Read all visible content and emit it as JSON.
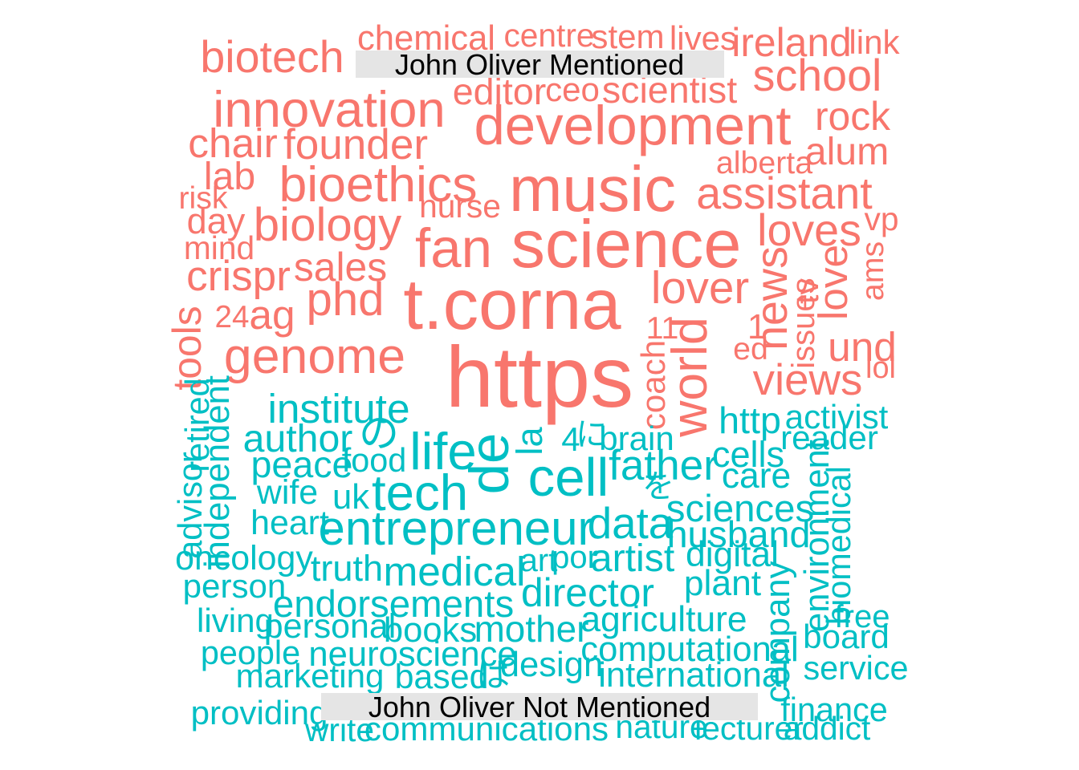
{
  "chart_data": {
    "type": "wordcloud",
    "groups": [
      {
        "label": "John Oliver Mentioned",
        "color": "#f8766d"
      },
      {
        "label": "John Oliver Not Mentioned",
        "color": "#00bfc4"
      }
    ],
    "words": [
      {
        "text": "https",
        "group": 0,
        "weight": 1.0
      },
      {
        "text": "t.corna",
        "group": 0,
        "weight": 0.82
      },
      {
        "text": "science",
        "group": 0,
        "weight": 0.78
      },
      {
        "text": "music",
        "group": 0,
        "weight": 0.73
      },
      {
        "text": "fan",
        "group": 0,
        "weight": 0.62
      },
      {
        "text": "development",
        "group": 0,
        "weight": 0.62
      },
      {
        "text": "innovation",
        "group": 0,
        "weight": 0.56
      },
      {
        "text": "bioethics",
        "group": 0,
        "weight": 0.55
      },
      {
        "text": "genome",
        "group": 0,
        "weight": 0.55
      },
      {
        "text": "world",
        "group": 0,
        "weight": 0.55
      },
      {
        "text": "biology",
        "group": 0,
        "weight": 0.5
      },
      {
        "text": "phd",
        "group": 0,
        "weight": 0.5
      },
      {
        "text": "lover",
        "group": 0,
        "weight": 0.48
      },
      {
        "text": "school",
        "group": 0,
        "weight": 0.47
      },
      {
        "text": "biotech",
        "group": 0,
        "weight": 0.47
      },
      {
        "text": "assistant",
        "group": 0,
        "weight": 0.47
      },
      {
        "text": "loves",
        "group": 0,
        "weight": 0.47
      },
      {
        "text": "news",
        "group": 0,
        "weight": 0.47
      },
      {
        "text": "views",
        "group": 0,
        "weight": 0.46
      },
      {
        "text": "crispr",
        "group": 0,
        "weight": 0.44
      },
      {
        "text": "founder",
        "group": 0,
        "weight": 0.44
      },
      {
        "text": "chair",
        "group": 0,
        "weight": 0.42
      },
      {
        "text": "und",
        "group": 0,
        "weight": 0.42
      },
      {
        "text": "ag",
        "group": 0,
        "weight": 0.42
      },
      {
        "text": "love",
        "group": 0,
        "weight": 0.42
      },
      {
        "text": "sales",
        "group": 0,
        "weight": 0.4
      },
      {
        "text": "ireland",
        "group": 0,
        "weight": 0.4
      },
      {
        "text": "rock",
        "group": 0,
        "weight": 0.4
      },
      {
        "text": "tools",
        "group": 0,
        "weight": 0.4
      },
      {
        "text": "lab",
        "group": 0,
        "weight": 0.38
      },
      {
        "text": "alum",
        "group": 0,
        "weight": 0.38
      },
      {
        "text": "editor",
        "group": 0,
        "weight": 0.36
      },
      {
        "text": "scientist",
        "group": 0,
        "weight": 0.36
      },
      {
        "text": "day",
        "group": 0,
        "weight": 0.34
      },
      {
        "text": "chemical",
        "group": 0,
        "weight": 0.32
      },
      {
        "text": "1",
        "group": 0,
        "weight": 0.32
      },
      {
        "text": "coach",
        "group": 0,
        "weight": 0.3
      },
      {
        "text": "ceo",
        "group": 0,
        "weight": 0.3
      },
      {
        "text": "stem",
        "group": 0,
        "weight": 0.3
      },
      {
        "text": "lives",
        "group": 0,
        "weight": 0.3
      },
      {
        "text": "link",
        "group": 0,
        "weight": 0.3
      },
      {
        "text": "centre",
        "group": 0,
        "weight": 0.28
      },
      {
        "text": "tv",
        "group": 0,
        "weight": 0.28
      },
      {
        "text": "nurse",
        "group": 0,
        "weight": 0.28
      },
      {
        "text": "mind",
        "group": 0,
        "weight": 0.28
      },
      {
        "text": "vp",
        "group": 0,
        "weight": 0.28
      },
      {
        "text": "issues",
        "group": 0,
        "weight": 0.27
      },
      {
        "text": "alberta",
        "group": 0,
        "weight": 0.26
      },
      {
        "text": "risk",
        "group": 0,
        "weight": 0.26
      },
      {
        "text": "11",
        "group": 0,
        "weight": 0.26
      },
      {
        "text": "ed",
        "group": 0,
        "weight": 0.26
      },
      {
        "text": "ams",
        "group": 0,
        "weight": 0.26
      },
      {
        "text": "24",
        "group": 0,
        "weight": 0.25
      },
      {
        "text": "lol",
        "group": 0,
        "weight": 0.24
      },
      {
        "text": "de",
        "group": 1,
        "weight": 0.62
      },
      {
        "text": "cell",
        "group": 1,
        "weight": 0.6
      },
      {
        "text": "life",
        "group": 1,
        "weight": 0.58
      },
      {
        "text": "tech",
        "group": 1,
        "weight": 0.56
      },
      {
        "text": "entrepreneur",
        "group": 1,
        "weight": 0.52
      },
      {
        "text": "data",
        "group": 1,
        "weight": 0.46
      },
      {
        "text": "father",
        "group": 1,
        "weight": 0.44
      },
      {
        "text": "institute",
        "group": 1,
        "weight": 0.42
      },
      {
        "text": "medical",
        "group": 1,
        "weight": 0.42
      },
      {
        "text": "director",
        "group": 1,
        "weight": 0.4
      },
      {
        "text": "の",
        "group": 1,
        "weight": 0.4
      },
      {
        "text": "author",
        "group": 1,
        "weight": 0.38
      },
      {
        "text": "artist",
        "group": 1,
        "weight": 0.38
      },
      {
        "text": "sciences",
        "group": 1,
        "weight": 0.37
      },
      {
        "text": "endorsements",
        "group": 1,
        "weight": 0.37
      },
      {
        "text": "peace",
        "group": 1,
        "weight": 0.36
      },
      {
        "text": "husband",
        "group": 1,
        "weight": 0.36
      },
      {
        "text": "http",
        "group": 1,
        "weight": 0.36
      },
      {
        "text": "mother",
        "group": 1,
        "weight": 0.35
      },
      {
        "text": "cells",
        "group": 1,
        "weight": 0.34
      },
      {
        "text": "la",
        "group": 1,
        "weight": 0.34
      },
      {
        "text": "truth",
        "group": 1,
        "weight": 0.34
      },
      {
        "text": "agriculture",
        "group": 1,
        "weight": 0.33
      },
      {
        "text": "care",
        "group": 1,
        "weight": 0.33
      },
      {
        "text": "digital",
        "group": 1,
        "weight": 0.33
      },
      {
        "text": "plant",
        "group": 1,
        "weight": 0.33
      },
      {
        "text": "computational",
        "group": 1,
        "weight": 0.32
      },
      {
        "text": "neuroscience",
        "group": 1,
        "weight": 0.32
      },
      {
        "text": "design",
        "group": 1,
        "weight": 0.32
      },
      {
        "text": "books",
        "group": 1,
        "weight": 0.32
      },
      {
        "text": "environment",
        "group": 1,
        "weight": 0.32
      },
      {
        "text": "independent",
        "group": 1,
        "weight": 0.32
      },
      {
        "text": "company",
        "group": 1,
        "weight": 0.32
      },
      {
        "text": "international",
        "group": 1,
        "weight": 0.32
      },
      {
        "text": "uk",
        "group": 1,
        "weight": 0.32
      },
      {
        "text": "wife",
        "group": 1,
        "weight": 0.31
      },
      {
        "text": "heart",
        "group": 1,
        "weight": 0.31
      },
      {
        "text": "oncology",
        "group": 1,
        "weight": 0.31
      },
      {
        "text": "personal",
        "group": 1,
        "weight": 0.31
      },
      {
        "text": "based",
        "group": 1,
        "weight": 0.31
      },
      {
        "text": "activist",
        "group": 1,
        "weight": 0.3
      },
      {
        "text": "reader",
        "group": 1,
        "weight": 0.3
      },
      {
        "text": "brain",
        "group": 1,
        "weight": 0.3
      },
      {
        "text": "food",
        "group": 1,
        "weight": 0.29
      },
      {
        "text": "person",
        "group": 1,
        "weight": 0.3
      },
      {
        "text": "living",
        "group": 1,
        "weight": 0.3
      },
      {
        "text": "marketing",
        "group": 1,
        "weight": 0.3
      },
      {
        "text": "communications",
        "group": 1,
        "weight": 0.3
      },
      {
        "text": "board",
        "group": 1,
        "weight": 0.3
      },
      {
        "text": "service",
        "group": 1,
        "weight": 0.29
      },
      {
        "text": "providing",
        "group": 1,
        "weight": 0.3
      },
      {
        "text": "biomedical",
        "group": 1,
        "weight": 0.29
      },
      {
        "text": "advisor",
        "group": 1,
        "weight": 0.29
      },
      {
        "text": "retired",
        "group": 1,
        "weight": 0.29
      },
      {
        "text": "people",
        "group": 1,
        "weight": 0.29
      },
      {
        "text": "finance",
        "group": 1,
        "weight": 0.29
      },
      {
        "text": "nature",
        "group": 1,
        "weight": 0.28
      },
      {
        "text": "lecturer",
        "group": 1,
        "weight": 0.28
      },
      {
        "text": "addict",
        "group": 1,
        "weight": 0.28
      },
      {
        "text": "write",
        "group": 1,
        "weight": 0.28
      },
      {
        "text": "free",
        "group": 1,
        "weight": 0.27
      },
      {
        "text": "art",
        "group": 1,
        "weight": 0.27
      },
      {
        "text": "por",
        "group": 1,
        "weight": 0.27
      },
      {
        "text": "4",
        "group": 1,
        "weight": 0.3
      },
      {
        "text": "に",
        "group": 1,
        "weight": 0.27
      },
      {
        "text": "を",
        "group": 1,
        "weight": 0.27
      },
      {
        "text": "は",
        "group": 1,
        "weight": 0.3
      }
    ]
  }
}
